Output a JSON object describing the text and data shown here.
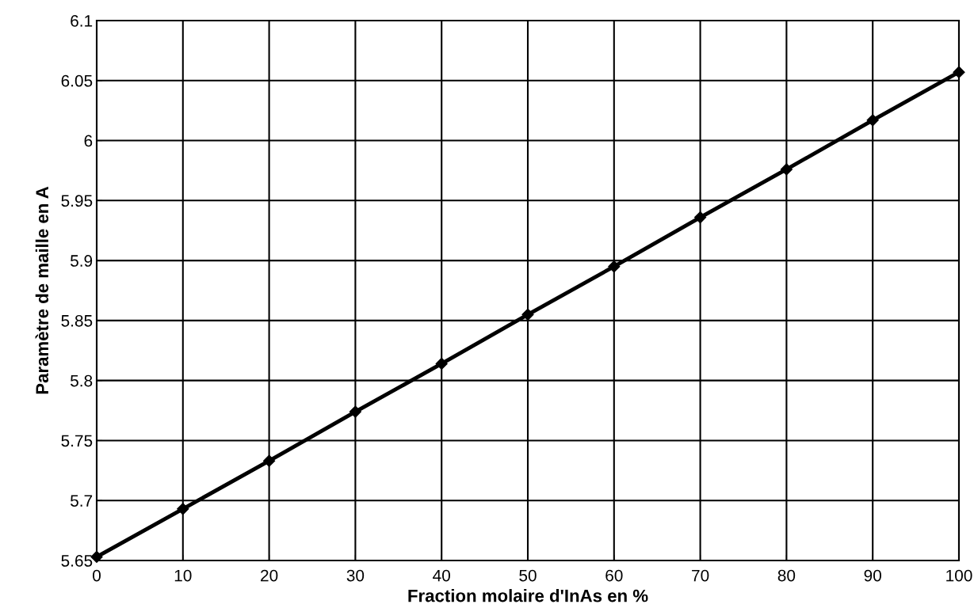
{
  "chart_data": {
    "type": "line",
    "xlabel": "Fraction molaire d'InAs en %",
    "ylabel": "Paramètre de maille en A",
    "x": [
      0,
      10,
      20,
      30,
      40,
      50,
      60,
      70,
      80,
      90,
      100
    ],
    "series": [
      {
        "color": "#000000",
        "values": [
          5.653,
          5.693,
          5.733,
          5.774,
          5.814,
          5.855,
          5.895,
          5.936,
          5.976,
          6.017,
          6.057
        ]
      }
    ],
    "xlim": [
      0,
      100
    ],
    "xticks": [
      0,
      10,
      20,
      30,
      40,
      50,
      60,
      70,
      80,
      90,
      100
    ],
    "ylim": [
      5.65,
      6.1
    ],
    "yticks": [
      {
        "value": 5.65,
        "label": "5.65"
      },
      {
        "value": 5.7,
        "label": "5.7"
      },
      {
        "value": 5.75,
        "label": "5.75"
      },
      {
        "value": 5.8,
        "label": "5.8"
      },
      {
        "value": 5.85,
        "label": "5.85"
      },
      {
        "value": 5.9,
        "label": "5.9"
      },
      {
        "value": 5.95,
        "label": "5.95"
      },
      {
        "value": 6.0,
        "label": "6"
      },
      {
        "value": 6.05,
        "label": "6.05"
      },
      {
        "value": 6.1,
        "label": "6.1"
      }
    ],
    "grid": true,
    "marker": "diamond",
    "line_style": "solid"
  }
}
